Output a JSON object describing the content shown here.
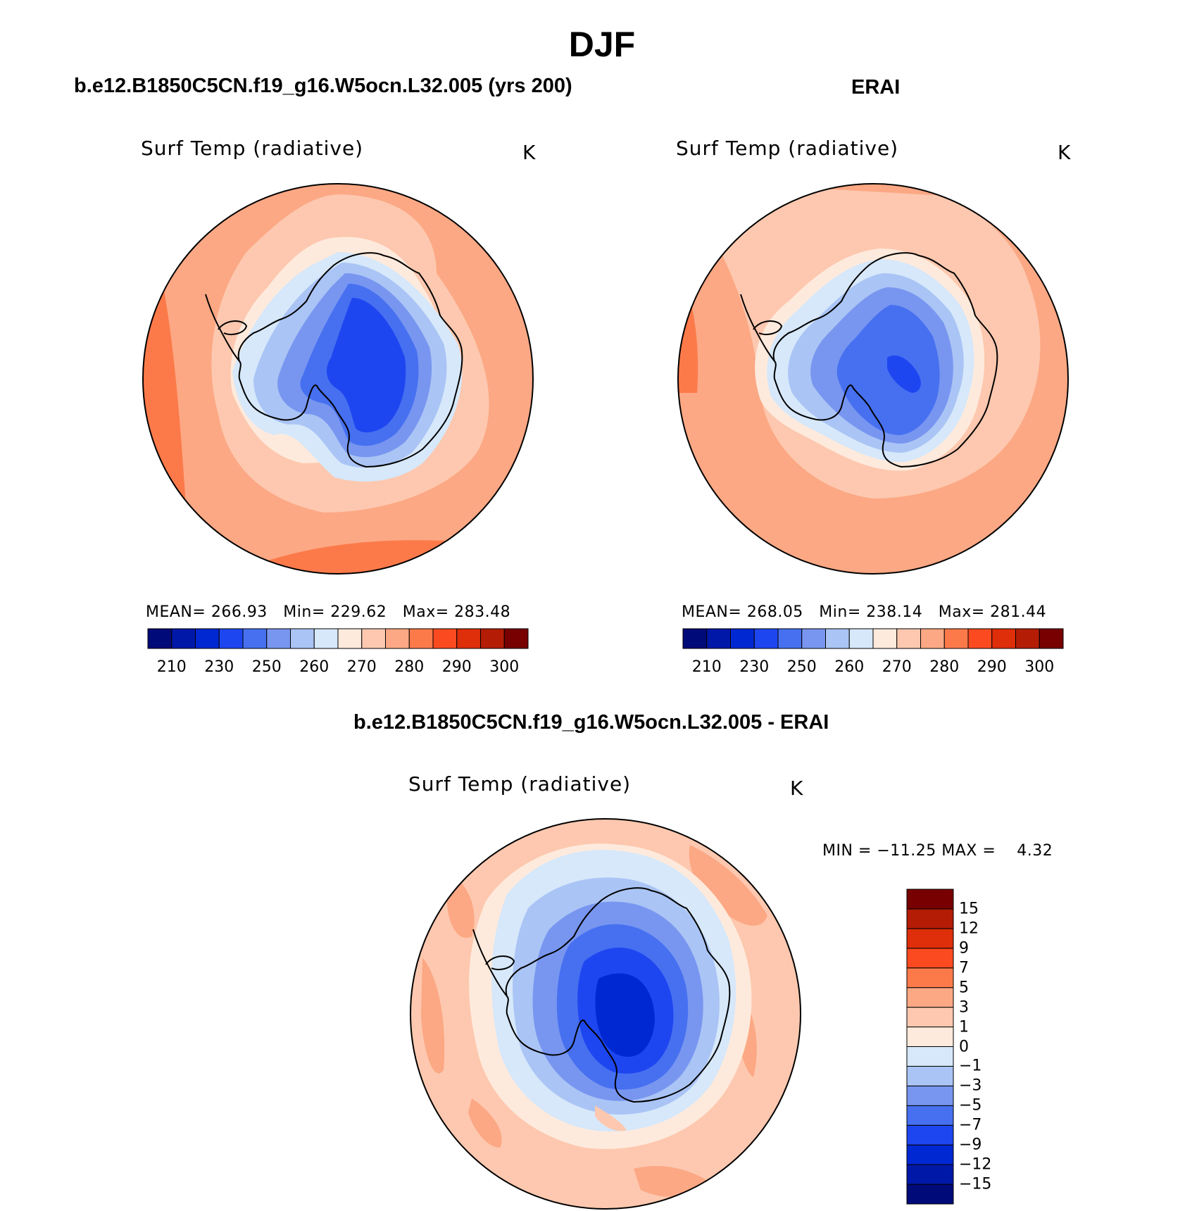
{
  "figure_title": "DJF",
  "panels": [
    {
      "id": "model",
      "case_title": "b.e12.B1850C5CN.f19_g16.W5ocn.L32.005 (yrs 200)",
      "variable": "Surf Temp (radiative)",
      "units": "K",
      "stats": {
        "mean_label": "MEAN=",
        "mean": "266.93",
        "min_label": "Min=",
        "min": "229.62",
        "max_label": "Max=",
        "max": "283.48"
      }
    },
    {
      "id": "obs",
      "case_title": "ERAI",
      "variable": "Surf Temp (radiative)",
      "units": "K",
      "stats": {
        "mean_label": "MEAN=",
        "mean": "268.05",
        "min_label": "Min=",
        "min": "238.14",
        "max_label": "Max=",
        "max": "281.44"
      }
    }
  ],
  "difference_panel": {
    "case_title": "b.e12.B1850C5CN.f19_g16.W5ocn.L32.005 - ERAI",
    "variable": "Surf Temp (radiative)",
    "units": "K",
    "minmax_text": "MIN = −11.25 MAX =    4.32"
  },
  "abs_colorbar": {
    "colors": [
      "#000a78",
      "#0018a8",
      "#0028d2",
      "#1e46f0",
      "#4670f0",
      "#7896f0",
      "#aac4f5",
      "#d6e8fa",
      "#feeadc",
      "#fdc8af",
      "#fca884",
      "#fc7a4a",
      "#fc4a20",
      "#de2e0a",
      "#b41c06",
      "#780000"
    ],
    "tick_labels": [
      "210",
      "230",
      "250",
      "260",
      "270",
      "280",
      "290",
      "300"
    ]
  },
  "diff_colorbar": {
    "colors": [
      "#000a78",
      "#0018a8",
      "#0028d2",
      "#1e46f0",
      "#4670f0",
      "#7896f0",
      "#aac4f5",
      "#d6e8fa",
      "#feeadc",
      "#fdc8af",
      "#fca884",
      "#fc7a4a",
      "#fc4a20",
      "#de2e0a",
      "#b41c06",
      "#780000"
    ],
    "tick_labels": [
      "−15",
      "−12",
      "−9",
      "−7",
      "−5",
      "−3",
      "−1",
      "0",
      "1",
      "3",
      "5",
      "7",
      "9",
      "12",
      "15"
    ]
  }
}
